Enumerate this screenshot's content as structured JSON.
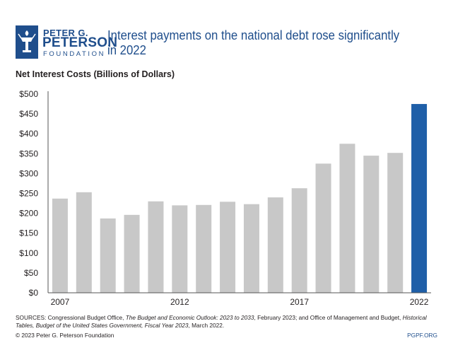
{
  "logo": {
    "line1": "PETER G.",
    "line2": "PETERSON",
    "line3": "FOUNDATION",
    "color": "#1f4e8c"
  },
  "title": "Interest payments on the national debt rose significantly in 2022",
  "footer": {
    "src_a": "SOURCES: Congressional Budget Office, ",
    "src_b": "The Budget and Economic Outlook: 2023 to 2033",
    "src_c": ", February 2023; and Office of Management and Budget, ",
    "src_d": "Historical Tables, Budget of the United States Government, Fiscal Year 2023",
    "src_e": ", March 2022.",
    "copyright": "© 2023 Peter G. Peterson Foundation",
    "site": "PGPF.ORG"
  },
  "chart_data": {
    "type": "bar",
    "title": "",
    "ylabel": "Net Interest Costs (Billions of Dollars)",
    "xlabel": "",
    "x": [
      2007,
      2008,
      2009,
      2010,
      2011,
      2012,
      2013,
      2014,
      2015,
      2016,
      2017,
      2018,
      2019,
      2020,
      2021,
      2022
    ],
    "values": [
      237,
      253,
      187,
      196,
      230,
      220,
      221,
      229,
      223,
      240,
      263,
      325,
      375,
      345,
      352,
      475
    ],
    "x_tick_labels": [
      "2007",
      "2012",
      "2017",
      "2022"
    ],
    "x_tick_years": [
      2007,
      2012,
      2017,
      2022
    ],
    "y_ticks": [
      0,
      50,
      100,
      150,
      200,
      250,
      300,
      350,
      400,
      450,
      500
    ],
    "y_tick_labels": [
      "$0",
      "$50",
      "$100",
      "$150",
      "$200",
      "$250",
      "$300",
      "$350",
      "$400",
      "$450",
      "$500"
    ],
    "ylim": [
      0,
      500
    ],
    "grid": false,
    "highlight_index": 15,
    "colors": {
      "bar": "#c8c8c8",
      "highlight": "#1f5fa8",
      "axis": "#555555"
    }
  }
}
